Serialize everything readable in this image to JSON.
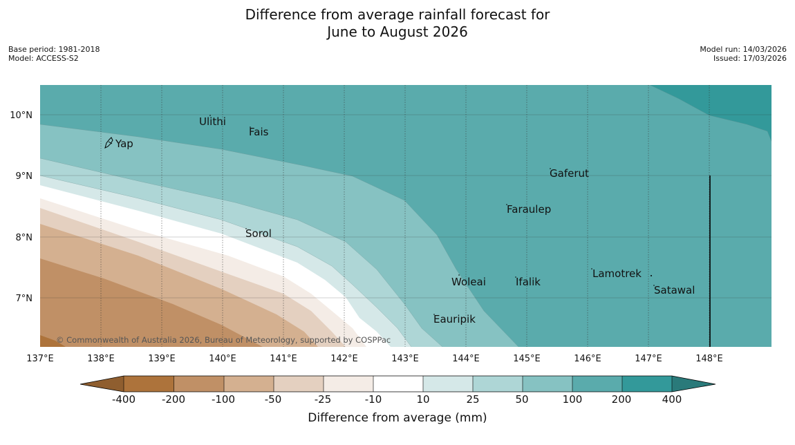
{
  "title": {
    "line1": "Difference from average rainfall forecast for",
    "line2": "June to August 2026"
  },
  "meta": {
    "base_period": "Base period: 1981-2018",
    "model": "Model: ACCESS-S2",
    "model_run": "Model run: 14/03/2026",
    "issued": "Issued: 17/03/2026"
  },
  "map": {
    "lon_labels": [
      "137°E",
      "138°E",
      "139°E",
      "140°E",
      "141°E",
      "142°E",
      "143°E",
      "144°E",
      "145°E",
      "146°E",
      "147°E",
      "148°E"
    ],
    "lat_labels": [
      "10°N",
      "9°N",
      "8°N",
      "7°N"
    ],
    "places": [
      {
        "name": "Ulithi"
      },
      {
        "name": "Fais"
      },
      {
        "name": "Yap"
      },
      {
        "name": "Gaferut"
      },
      {
        "name": "Faraulep"
      },
      {
        "name": "Sorol"
      },
      {
        "name": "Woleai"
      },
      {
        "name": "Ifalik"
      },
      {
        "name": "Lamotrek"
      },
      {
        "name": "Satawal"
      },
      {
        "name": "Eauripik"
      }
    ],
    "copyright": "© Commonwealth of Australia 2026, Bureau of Meteorology, supported by COSPPac"
  },
  "colorbar": {
    "ticks": [
      "-400",
      "-200",
      "-100",
      "-50",
      "-25",
      "-10",
      "10",
      "25",
      "50",
      "100",
      "200",
      "400"
    ],
    "title": "Difference from average (mm)",
    "colors": {
      "below_400": "#8f5e2f",
      "m400_m200": "#ad733b",
      "m200_m100": "#c09066",
      "m100_m50": "#d4b090",
      "m50_m25": "#e4d0c0",
      "m25_m10": "#f4ece6",
      "m10_10": "#ffffff",
      "p10_p25": "#d5e8e8",
      "p25_p50": "#aed6d6",
      "p50_p100": "#86c2c2",
      "p100_p200": "#5aabac",
      "p200_p400": "#33999a",
      "above_400": "#2a7a7a"
    }
  }
}
